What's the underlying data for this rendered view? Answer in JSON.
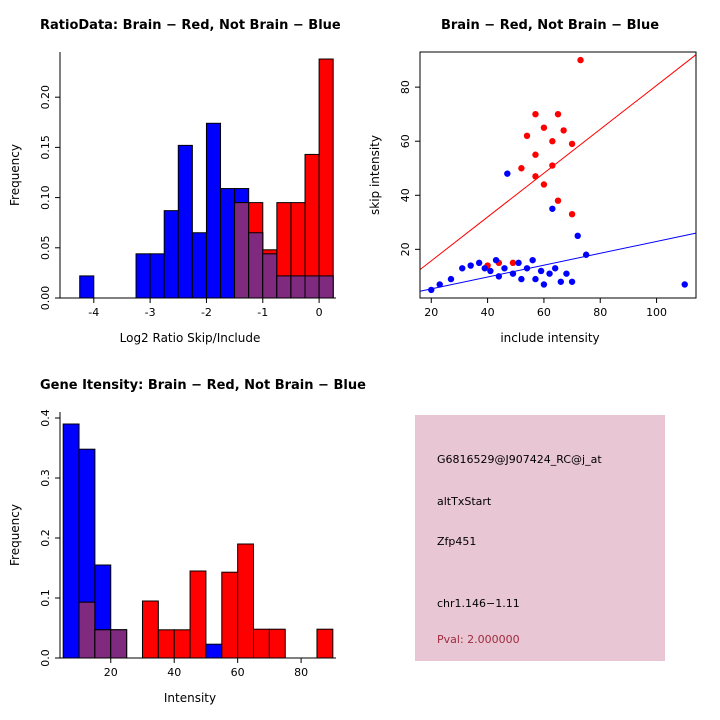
{
  "colors": {
    "red": "#ff0000",
    "blue": "#0000ff",
    "overlap": "#7f2a7f",
    "axis": "#000000"
  },
  "chart_data": [
    {
      "id": "ratio_hist",
      "type": "bar",
      "title": "RatioData: Brain − Red, Not Brain − Blue",
      "xlabel": "Log2 Ratio Skip/Include",
      "ylabel": "Frequency",
      "bin_width": 0.25,
      "bin_edges": [
        -4.5,
        -4.25,
        -4.0,
        -3.75,
        -3.5,
        -3.25,
        -3.0,
        -2.75,
        -2.5,
        -2.25,
        -2.0,
        -1.75,
        -1.5,
        -1.25,
        -1.0,
        -0.75,
        -0.5,
        -0.25,
        0.0
      ],
      "series": [
        {
          "name": "Not Brain",
          "color_key": "blue",
          "values": [
            0,
            0.022,
            0,
            0,
            0,
            0.044,
            0.044,
            0.087,
            0.152,
            0.065,
            0.174,
            0.109,
            0.109,
            0.065,
            0.044,
            0.022,
            0.022,
            0.022,
            0.022
          ]
        },
        {
          "name": "Brain",
          "color_key": "red",
          "values": [
            0,
            0,
            0,
            0,
            0,
            0,
            0,
            0,
            0,
            0,
            0,
            0,
            0.095,
            0.095,
            0.048,
            0.095,
            0.095,
            0.143,
            0.238
          ]
        }
      ],
      "xticks": [
        -4,
        -3,
        -2,
        -1,
        0
      ],
      "xtick_labels": [
        "-4",
        "-3",
        "-2",
        "-1",
        "0"
      ],
      "yticks": [
        0,
        0.05,
        0.1,
        0.15,
        0.2
      ],
      "ytick_labels": [
        "0.00",
        "0.05",
        "0.10",
        "0.15",
        "0.20"
      ],
      "xlim": [
        -4.6,
        0.3
      ],
      "ylim": [
        0,
        0.245
      ],
      "grid": false,
      "legend": "none"
    },
    {
      "id": "intensity_scatter",
      "type": "scatter",
      "title": "Brain − Red, Not Brain − Blue",
      "xlabel": "include intensity",
      "ylabel": "skip intensity",
      "series": [
        {
          "name": "Brain",
          "color_key": "red",
          "points": [
            [
              73,
              90
            ],
            [
              57,
              70
            ],
            [
              65,
              70
            ],
            [
              60,
              65
            ],
            [
              67,
              64
            ],
            [
              54,
              62
            ],
            [
              63,
              60
            ],
            [
              70,
              59
            ],
            [
              57,
              55
            ],
            [
              52,
              50
            ],
            [
              63,
              51
            ],
            [
              57,
              47
            ],
            [
              60,
              44
            ],
            [
              65,
              38
            ],
            [
              70,
              33
            ],
            [
              44,
              15
            ],
            [
              49,
              15
            ],
            [
              40,
              14
            ]
          ],
          "line": {
            "x": [
              16,
              114
            ],
            "y": [
              12.5,
              92
            ]
          }
        },
        {
          "name": "Not Brain",
          "color_key": "blue",
          "points": [
            [
              20,
              5
            ],
            [
              23,
              7
            ],
            [
              27,
              9
            ],
            [
              31,
              13
            ],
            [
              34,
              14
            ],
            [
              37,
              15
            ],
            [
              39,
              13
            ],
            [
              41,
              12
            ],
            [
              43,
              16
            ],
            [
              44,
              10
            ],
            [
              46,
              13
            ],
            [
              47,
              48
            ],
            [
              49,
              11
            ],
            [
              51,
              15
            ],
            [
              52,
              9
            ],
            [
              54,
              13
            ],
            [
              56,
              16
            ],
            [
              57,
              9
            ],
            [
              59,
              12
            ],
            [
              60,
              7
            ],
            [
              62,
              11
            ],
            [
              64,
              13
            ],
            [
              66,
              8
            ],
            [
              68,
              11
            ],
            [
              70,
              8
            ],
            [
              72,
              25
            ],
            [
              75,
              18
            ],
            [
              63,
              35
            ],
            [
              110,
              7
            ]
          ],
          "line": {
            "x": [
              16,
              114
            ],
            "y": [
              4.5,
              26
            ]
          }
        }
      ],
      "xticks": [
        20,
        40,
        60,
        80,
        100
      ],
      "xtick_labels": [
        "20",
        "40",
        "60",
        "80",
        "100"
      ],
      "yticks": [
        20,
        40,
        60,
        80
      ],
      "ytick_labels": [
        "20",
        "40",
        "60",
        "80"
      ],
      "xlim": [
        16,
        114
      ],
      "ylim": [
        2,
        93
      ],
      "grid": false,
      "legend": "none",
      "box": true
    },
    {
      "id": "gene_hist",
      "type": "bar",
      "title": "Gene Itensity: Brain − Red, Not Brain − Blue",
      "xlabel": "Intensity",
      "ylabel": "Frequency",
      "bin_width": 5,
      "bin_edges": [
        5,
        10,
        15,
        20,
        25,
        30,
        35,
        40,
        45,
        50,
        55,
        60,
        65,
        70,
        75,
        80,
        85
      ],
      "series": [
        {
          "name": "Not Brain",
          "color_key": "blue",
          "values": [
            0.39,
            0.348,
            0.155,
            0.047,
            0,
            0,
            0,
            0,
            0,
            0.023,
            0,
            0,
            0,
            0,
            0,
            0,
            0
          ]
        },
        {
          "name": "Brain",
          "color_key": "red",
          "values": [
            0,
            0.093,
            0.047,
            0.047,
            0,
            0.095,
            0.047,
            0.047,
            0.145,
            0,
            0.143,
            0.19,
            0.048,
            0.048,
            0,
            0,
            0.048
          ]
        }
      ],
      "xticks": [
        20,
        40,
        60,
        80
      ],
      "xtick_labels": [
        "20",
        "40",
        "60",
        "80"
      ],
      "yticks": [
        0,
        0.1,
        0.2,
        0.3,
        0.4
      ],
      "ytick_labels": [
        "0.0",
        "0.1",
        "0.2",
        "0.3",
        "0.4"
      ],
      "xlim": [
        4,
        91
      ],
      "ylim": [
        0,
        0.41
      ],
      "grid": false,
      "legend": "none"
    }
  ],
  "info_panel": {
    "probe_id": "G6816529@J907424_RC@j_at",
    "event_type": "altTxStart",
    "gene": "Zfp451",
    "location": "chr1.146−1.11",
    "pval": "Pval: 2.000000",
    "bg_color": "#e9c6d3",
    "pval_color": "#9e2b3f"
  }
}
